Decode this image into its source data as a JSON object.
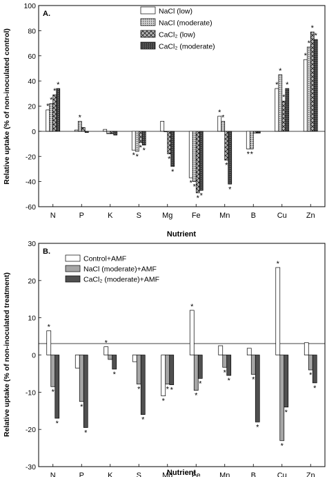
{
  "chart_data": [
    {
      "type": "bar",
      "panel_label": "A.",
      "xlabel": "Nutrient",
      "ylabel": "Relative uptake (% of non-inoculated control)",
      "categories": [
        "N",
        "P",
        "K",
        "S",
        "Mg",
        "Fe",
        "Mn",
        "B",
        "Cu",
        "Zn"
      ],
      "ylim": [
        -60,
        100
      ],
      "yticks": [
        -60,
        -40,
        -20,
        0,
        20,
        40,
        60,
        80,
        100
      ],
      "legend_position": "top-center",
      "series": [
        {
          "name": "NaCl (low)",
          "values": [
            17,
            1,
            1.5,
            -15,
            8,
            -37,
            12,
            -14,
            34,
            57
          ],
          "significant": [
            true,
            false,
            false,
            true,
            false,
            true,
            true,
            true,
            true,
            true
          ]
        },
        {
          "name": "NaCl (moderate)",
          "values": [
            22,
            8,
            -2,
            -16,
            0,
            -40,
            8,
            -14,
            45,
            67
          ],
          "significant": [
            true,
            true,
            false,
            true,
            false,
            true,
            true,
            true,
            true,
            true
          ]
        },
        {
          "name": "CaCl₂ (low)",
          "values": [
            29,
            3,
            -2,
            -9,
            -18,
            -49,
            -23,
            -1.5,
            24,
            79
          ],
          "significant": [
            true,
            false,
            false,
            true,
            true,
            true,
            true,
            false,
            true,
            true
          ]
        },
        {
          "name": "CaCl₂ (moderate)",
          "values": [
            34,
            -1,
            -3,
            -11,
            -28,
            -47,
            -42,
            -1.5,
            34,
            73
          ],
          "significant": [
            true,
            false,
            false,
            true,
            true,
            true,
            true,
            false,
            true,
            true
          ]
        }
      ]
    },
    {
      "type": "bar",
      "panel_label": "B.",
      "xlabel": "Nutrient",
      "ylabel": "Relative uptake (% of non-inoculated treatment)",
      "categories": [
        "N",
        "P",
        "K",
        "S",
        "Mg",
        "Fe",
        "Mn",
        "B",
        "Cu",
        "Zn"
      ],
      "ylim": [
        -30,
        30
      ],
      "yticks": [
        -30,
        -20,
        -10,
        0,
        10,
        20,
        30
      ],
      "legend_position": "top-left",
      "series": [
        {
          "name": "Control+AMF",
          "values": [
            6.5,
            -3.5,
            2.2,
            -1.8,
            -11,
            12,
            2.5,
            1.8,
            23.5,
            3.3
          ],
          "significant": [
            true,
            false,
            true,
            false,
            true,
            true,
            false,
            false,
            true,
            false
          ]
        },
        {
          "name": "NaCl (moderate)+AMF",
          "values": [
            -8.5,
            -12.5,
            -1.2,
            -7.8,
            -7.8,
            -9.5,
            -3.3,
            -5.2,
            -23,
            -4
          ],
          "significant": [
            true,
            true,
            false,
            true,
            true,
            true,
            true,
            true,
            true,
            true
          ]
        },
        {
          "name": "CaCl₂ (moderate)+AMF",
          "values": [
            -17,
            -19.5,
            -3.8,
            -16,
            -8,
            -6.3,
            -5.5,
            -18,
            -14,
            -7.5
          ],
          "significant": [
            true,
            true,
            true,
            true,
            true,
            true,
            true,
            true,
            true,
            true
          ]
        }
      ]
    }
  ]
}
